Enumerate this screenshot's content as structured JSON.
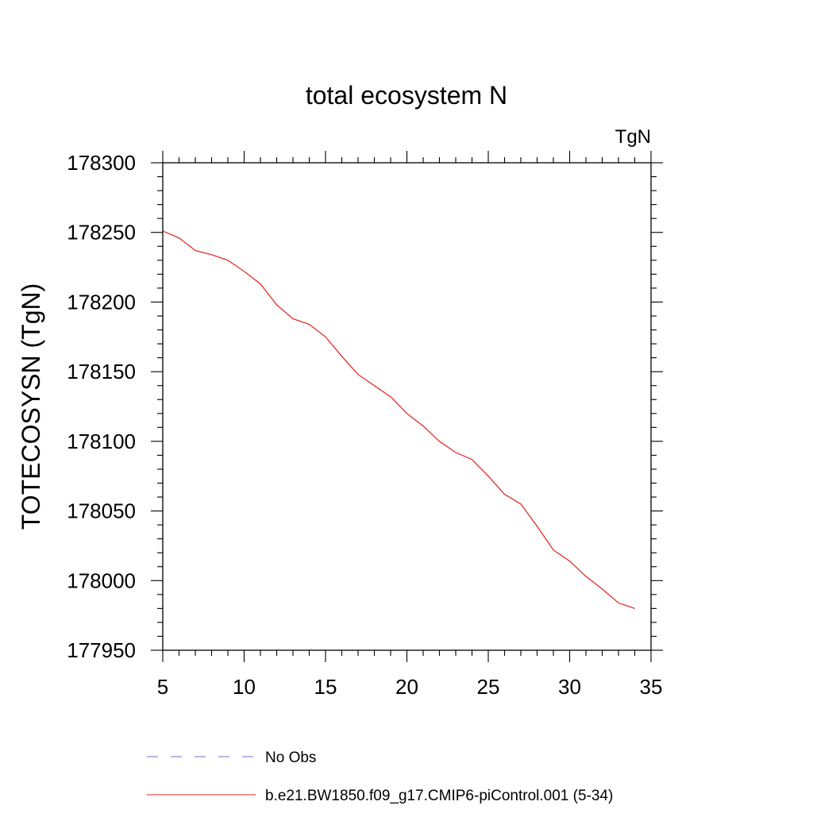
{
  "chart_data": {
    "type": "line",
    "title": "total ecosystem N",
    "units_label": "TgN",
    "xlabel": "",
    "ylabel": "TOTECOSYSN  (TgN)",
    "xlim": [
      5,
      35
    ],
    "ylim": [
      177950,
      178300
    ],
    "xticks": [
      5,
      10,
      15,
      20,
      25,
      30,
      35
    ],
    "yticks": [
      177950,
      178000,
      178050,
      178100,
      178150,
      178200,
      178250,
      178300
    ],
    "grid": false,
    "legend_position": "bottom",
    "legend": [
      {
        "label": "No Obs",
        "color": "#7b68c8",
        "style": "dashed"
      },
      {
        "label": "b.e21.BW1850.f09_g17.CMIP6-piControl.001 (5-34)",
        "color": "#e0201a",
        "style": "solid"
      }
    ],
    "series": [
      {
        "name": "b.e21.BW1850.f09_g17.CMIP6-piControl.001 (5-34)",
        "color": "#e0201a",
        "x": [
          5,
          6,
          7,
          8,
          9,
          10,
          11,
          12,
          13,
          14,
          15,
          16,
          17,
          18,
          19,
          20,
          21,
          22,
          23,
          24,
          25,
          26,
          27,
          28,
          29,
          30,
          31,
          32,
          33,
          34
        ],
        "y": [
          178251,
          178246,
          178237,
          178234,
          178230,
          178222,
          178213,
          178198,
          178188,
          178184,
          178175,
          178161,
          178148,
          178140,
          178132,
          178120,
          178111,
          178100,
          178092,
          178087,
          178075,
          178062,
          178055,
          178039,
          178022,
          178014,
          178003,
          177994,
          177984,
          177980
        ]
      }
    ]
  }
}
